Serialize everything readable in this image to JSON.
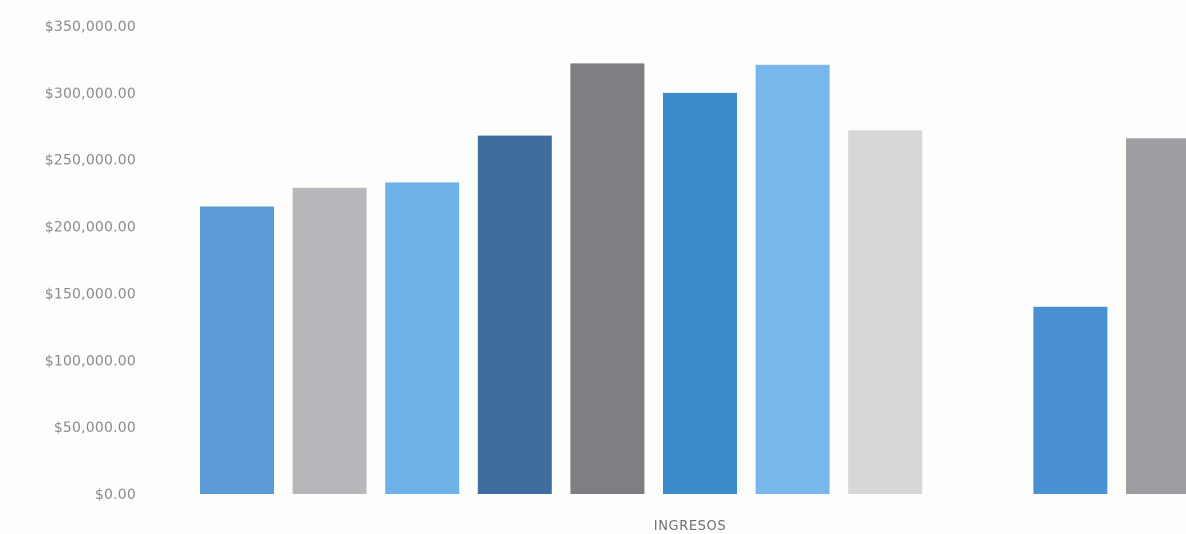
{
  "chart_data": {
    "type": "bar",
    "title": "",
    "xlabel": "INGRESOS",
    "ylabel": "",
    "ylim": [
      0,
      350000
    ],
    "yticks": [
      0,
      50000,
      100000,
      150000,
      200000,
      250000,
      300000,
      350000
    ],
    "ytick_labels": [
      "$0.00",
      "$50,000.00",
      "$100,000.00",
      "$150,000.00",
      "$200,000.00",
      "$250,000.00",
      "$300,000.00",
      "$350,000.00"
    ],
    "grid": false,
    "legend": "none",
    "values": [
      215000,
      229000,
      233000,
      268000,
      322000,
      300000,
      321000,
      272000,
      0,
      140000,
      266000
    ],
    "colors": [
      "#5b9bd5",
      "#b6b8bb",
      "#6fb2ea",
      "#3f6e9e",
      "#7e7f82",
      "#3b8bcc",
      "#79b6ec",
      "#d6d7d8",
      "#ffffff",
      "#4a90d4",
      "#9c9ea1"
    ]
  }
}
